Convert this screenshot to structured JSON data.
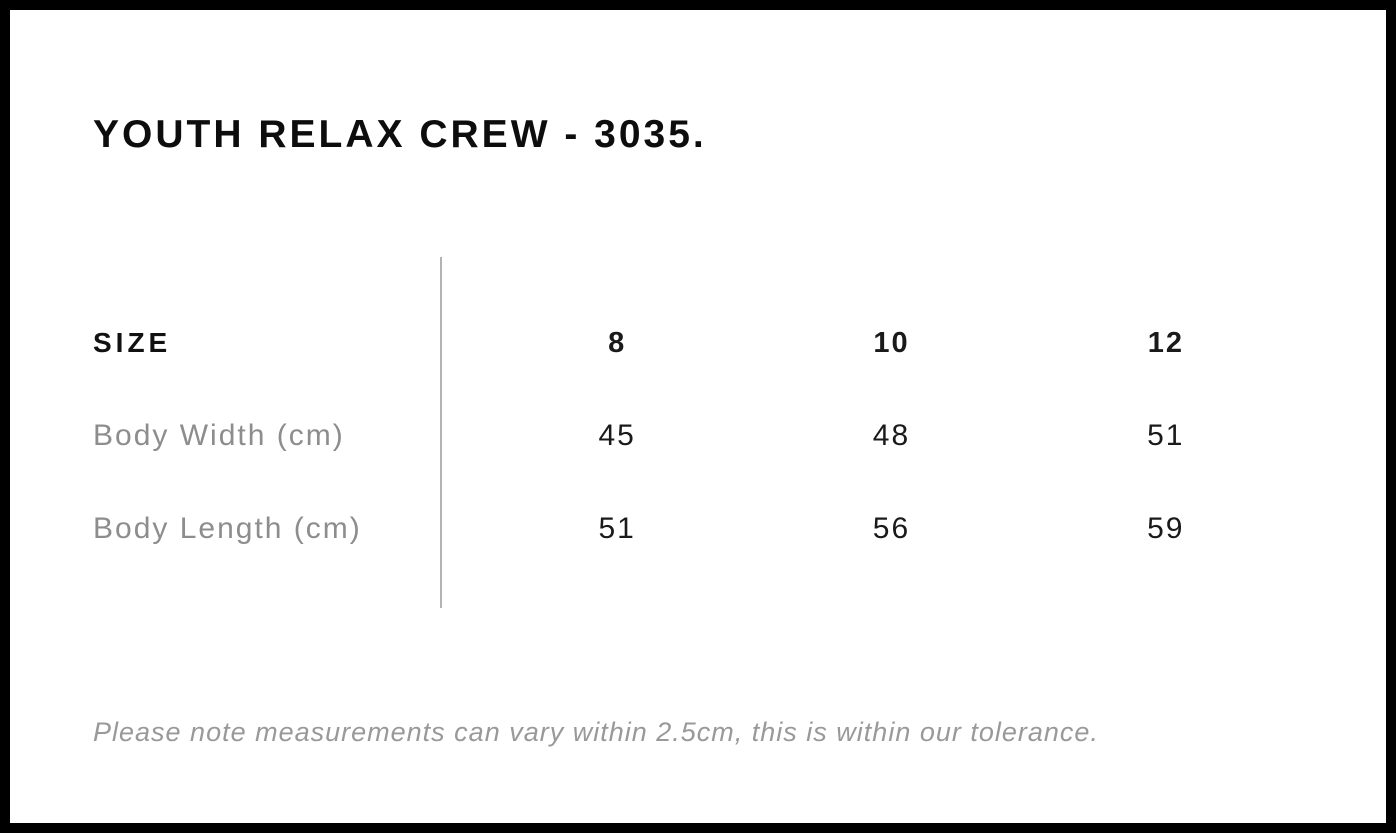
{
  "chart_data": {
    "type": "table",
    "title": "YOUTH RELAX CREW - 3035.",
    "columns_header": "SIZE",
    "columns": [
      "8",
      "10",
      "12"
    ],
    "rows": [
      {
        "label": "Body Width (cm)",
        "values": [
          "45",
          "48",
          "51"
        ]
      },
      {
        "label": "Body Length (cm)",
        "values": [
          "51",
          "56",
          "59"
        ]
      }
    ],
    "note": "Please note measurements can vary within 2.5cm, this is within our tolerance."
  },
  "colors": {
    "title_text": "#0d0d0d",
    "value_text": "#1a1a1a",
    "label_gray": "#8d8d8d",
    "note_gray": "#999999",
    "divider_gray": "#b3b3b3",
    "frame_black": "#000000",
    "background": "#ffffff"
  }
}
